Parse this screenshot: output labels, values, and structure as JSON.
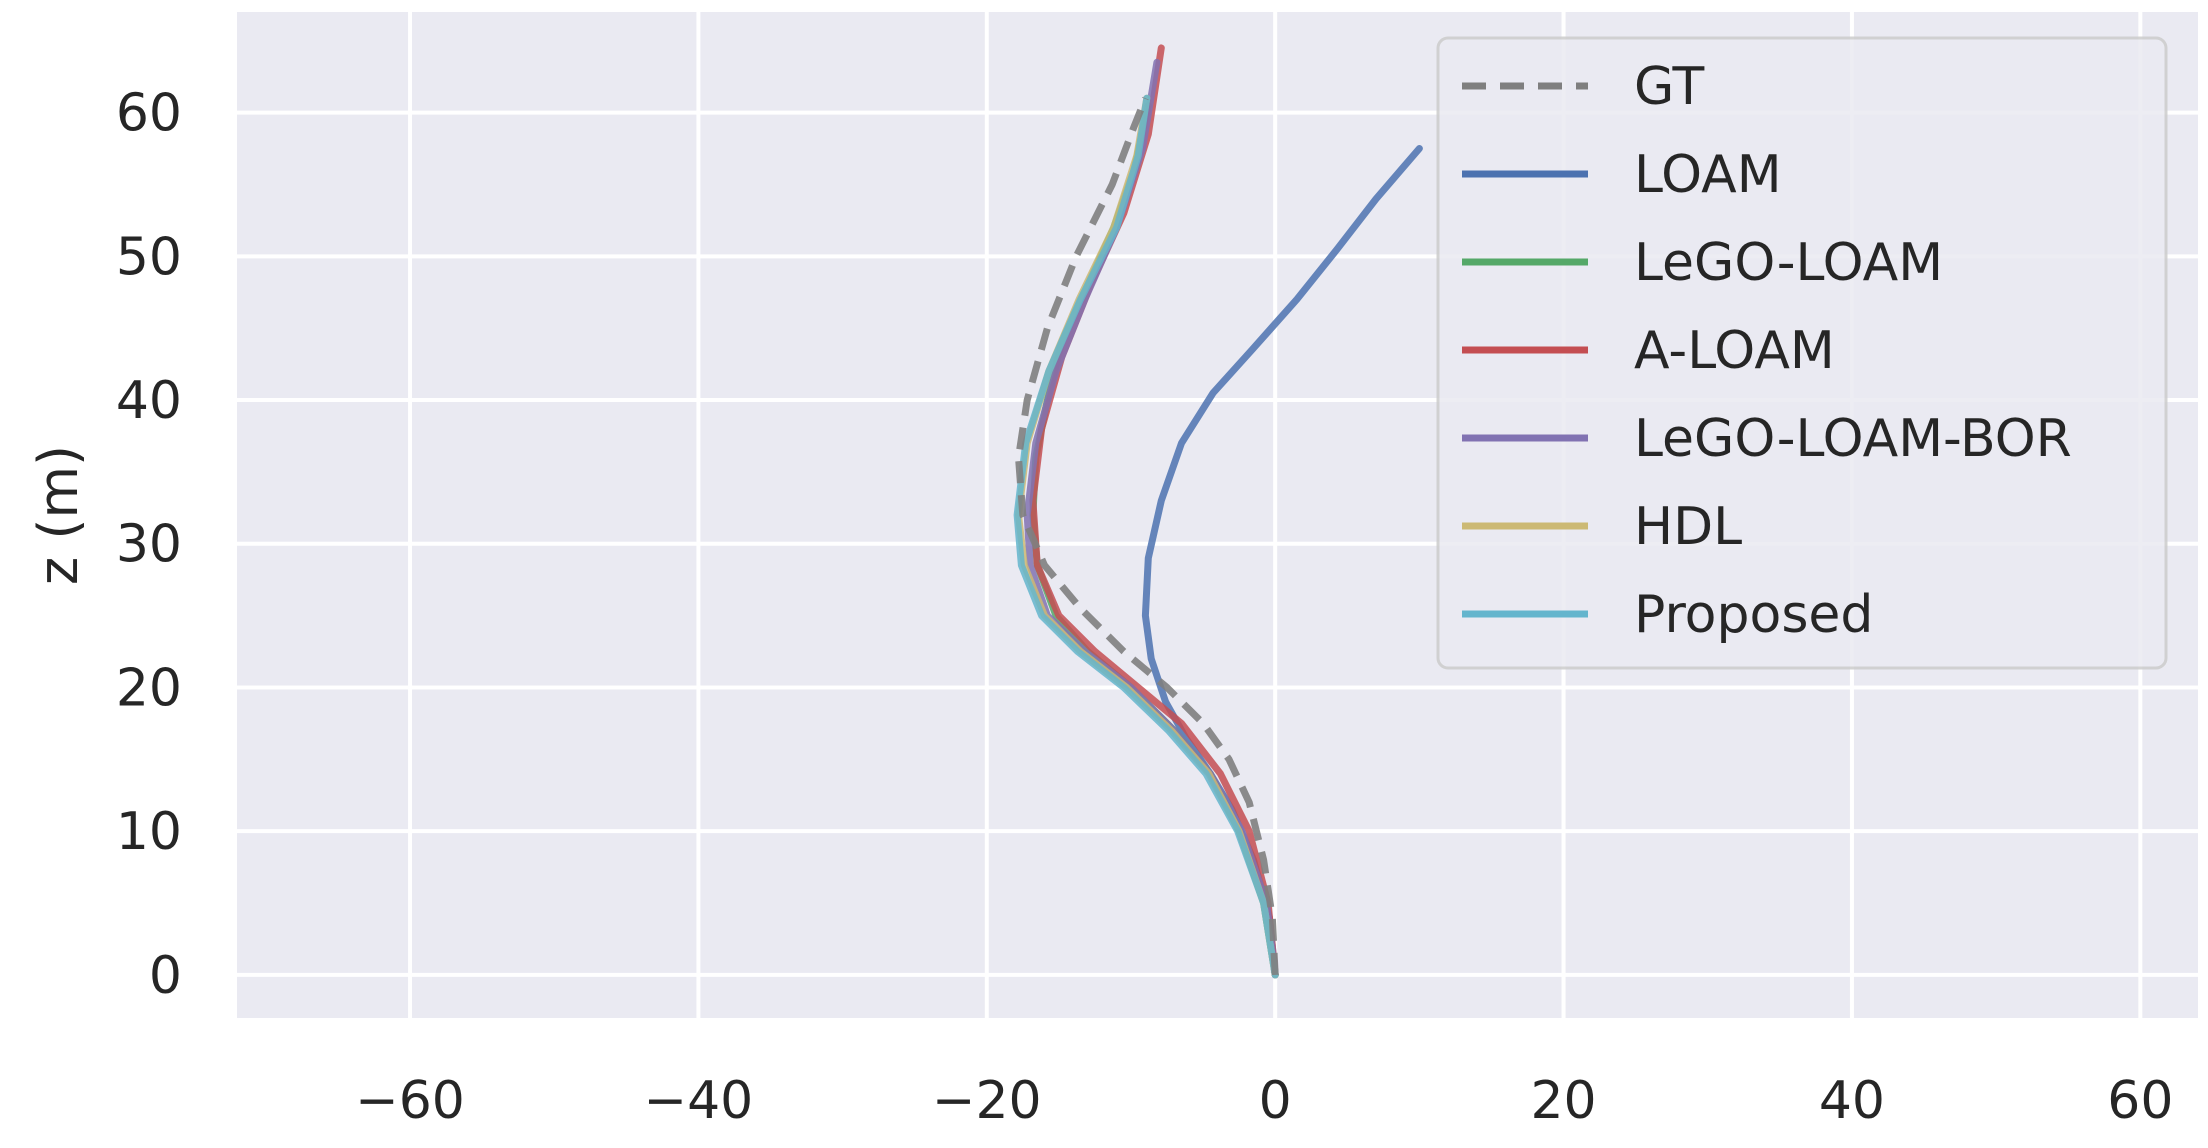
{
  "chart_data": {
    "type": "line",
    "title": "",
    "xlabel": "",
    "ylabel": "z (m)",
    "xlim": [
      -72,
      64
    ],
    "ylim": [
      -3,
      67
    ],
    "xticks": [
      -60,
      -40,
      -20,
      0,
      20,
      40,
      60
    ],
    "yticks": [
      0,
      10,
      20,
      30,
      40,
      50,
      60
    ],
    "xtick_labels": [
      "−60",
      "−40",
      "−20",
      "0",
      "20",
      "40",
      "60"
    ],
    "ytick_labels": [
      "0",
      "10",
      "20",
      "30",
      "40",
      "50",
      "60"
    ],
    "grid": true,
    "legend_position": "top-right",
    "colors": {
      "background": "#eaeaf2",
      "grid": "#ffffff",
      "text": "#262626",
      "legend_border": "#cccccc"
    },
    "series": [
      {
        "name": "GT",
        "color": "#7f7f7f",
        "style": "dashed",
        "x": [
          0,
          -0.2,
          -0.8,
          -1.8,
          -3.2,
          -5.0,
          -7.5,
          -10.5,
          -13.5,
          -16.0,
          -17.5,
          -17.8,
          -17.2,
          -15.8,
          -13.8,
          -11.3,
          -9.8,
          -9.0
        ],
        "y": [
          0,
          4,
          8,
          12,
          15,
          17.5,
          20,
          22.5,
          25.5,
          28.5,
          32,
          36,
          40,
          45,
          50,
          55,
          59,
          61
        ]
      },
      {
        "name": "LOAM",
        "color": "#4c72b0",
        "style": "solid",
        "x": [
          0,
          -0.4,
          -1.5,
          -3.0,
          -4.5,
          -6.2,
          -7.6,
          -8.6,
          -9.0,
          -8.8,
          -7.9,
          -6.5,
          -4.3,
          -1.6,
          1.5,
          4.3,
          7.0,
          10.0
        ],
        "y": [
          0,
          4,
          8,
          11.5,
          14,
          16.5,
          19,
          22,
          25,
          29,
          33,
          37,
          40.5,
          43.5,
          47,
          50.5,
          54,
          57.5
        ]
      },
      {
        "name": "LeGO-LOAM",
        "color": "#55a868",
        "style": "solid",
        "x": [
          0,
          -0.8,
          -2.5,
          -4.5,
          -7.0,
          -10.0,
          -13.0,
          -15.2,
          -16.5,
          -16.8,
          -16.6,
          -15.8,
          -14.8,
          -13.0,
          -11.2,
          -9.8,
          -8.8
        ],
        "y": [
          0,
          5,
          10,
          14,
          17,
          20,
          22.5,
          25,
          28.5,
          32,
          36,
          40,
          44,
          48,
          52,
          56,
          60.5
        ]
      },
      {
        "name": "A-LOAM",
        "color": "#c44e52",
        "style": "solid",
        "x": [
          0,
          -0.5,
          -1.8,
          -3.8,
          -6.5,
          -9.5,
          -12.5,
          -15.0,
          -16.5,
          -16.8,
          -16.2,
          -14.8,
          -12.8,
          -10.5,
          -8.8,
          -7.9
        ],
        "y": [
          0,
          5,
          10,
          14,
          17.5,
          20,
          22.5,
          25,
          28.5,
          33,
          38,
          43,
          48,
          53,
          58.5,
          64.5
        ]
      },
      {
        "name": "LeGO-LOAM-BOR",
        "color": "#8172b2",
        "style": "solid",
        "x": [
          0,
          -0.6,
          -2.3,
          -4.5,
          -7.0,
          -10.0,
          -13.2,
          -15.8,
          -17.0,
          -17.2,
          -16.6,
          -15.2,
          -13.2,
          -11.0,
          -9.2,
          -8.2
        ],
        "y": [
          0,
          5,
          10,
          14,
          17,
          20,
          22.5,
          25,
          28.5,
          32,
          37,
          42,
          47,
          52,
          57.5,
          63.5
        ]
      },
      {
        "name": "HDL",
        "color": "#ccb974",
        "style": "solid",
        "x": [
          0,
          -0.8,
          -2.5,
          -4.6,
          -7.2,
          -10.3,
          -13.5,
          -16.0,
          -17.4,
          -17.8,
          -17.2,
          -15.7,
          -13.6,
          -11.2,
          -9.6,
          -8.9
        ],
        "y": [
          0,
          5,
          10,
          14,
          17,
          20,
          22.5,
          25,
          28.5,
          32,
          37,
          42,
          47,
          52,
          57,
          61
        ]
      },
      {
        "name": "Proposed",
        "color": "#64b5cd",
        "style": "solid",
        "x": [
          0,
          -0.8,
          -2.6,
          -4.8,
          -7.4,
          -10.5,
          -13.7,
          -16.2,
          -17.6,
          -17.9,
          -17.3,
          -15.7,
          -13.5,
          -11.0,
          -9.5,
          -8.9
        ],
        "y": [
          0,
          5,
          10,
          14,
          17,
          20,
          22.5,
          25,
          28.5,
          32,
          37,
          42,
          47,
          52,
          57,
          61
        ]
      }
    ]
  }
}
